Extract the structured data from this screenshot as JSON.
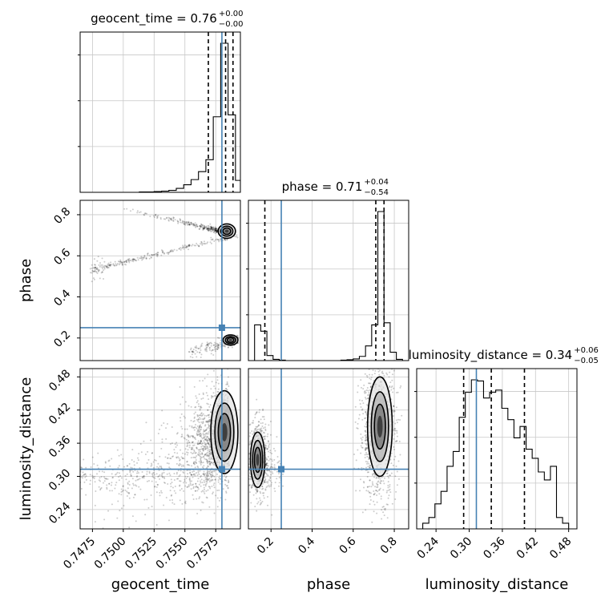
{
  "chart_data": {
    "type": "corner",
    "parameters": [
      "geocent_time",
      "phase",
      "luminosity_distance"
    ],
    "titles": {
      "geocent_time": {
        "name": "geocent_time",
        "median": "0.76",
        "plus": "+0.00",
        "minus": "−0.00"
      },
      "phase": {
        "name": "phase",
        "median": "0.71",
        "plus": "+0.04",
        "minus": "−0.54"
      },
      "luminosity_distance": {
        "name": "luminosity_distance",
        "median": "0.34",
        "plus": "+0.06",
        "minus": "−0.05"
      }
    },
    "axis_labels": {
      "x": [
        "geocent_time",
        "phase",
        "luminosity_distance"
      ],
      "y": [
        "phase",
        "luminosity_distance"
      ]
    },
    "ranges": {
      "geocent_time": [
        0.7465,
        0.7595
      ],
      "phase": [
        0.09,
        0.87
      ],
      "luminosity_distance": [
        0.205,
        0.495
      ]
    },
    "ticks": {
      "geocent_time": [
        "0.7475",
        "0.7500",
        "0.7525",
        "0.7550",
        "0.7575"
      ],
      "phase": [
        "0.2",
        "0.4",
        "0.6",
        "0.8"
      ],
      "luminosity_distance": [
        "0.24",
        "0.30",
        "0.36",
        "0.42",
        "0.48"
      ]
    },
    "truths": {
      "geocent_time": 0.758,
      "phase": 0.25,
      "luminosity_distance": 0.313
    },
    "quantiles": {
      "geocent_time": [
        0.7569,
        0.7583,
        0.7589
      ],
      "phase": [
        0.17,
        0.71,
        0.75
      ],
      "luminosity_distance": [
        0.29,
        0.34,
        0.4
      ]
    },
    "histograms": {
      "geocent_time": {
        "edges": [
          0.7465,
          0.7471,
          0.7477,
          0.7483,
          0.7489,
          0.7495,
          0.7501,
          0.7507,
          0.7513,
          0.7519,
          0.7525,
          0.7531,
          0.7537,
          0.7543,
          0.7549,
          0.7555,
          0.7561,
          0.7567,
          0.7573,
          0.7579,
          0.7585,
          0.7591,
          0.7595
        ],
        "counts": [
          0,
          0,
          0,
          0,
          0,
          0,
          0,
          0,
          1,
          1,
          2,
          3,
          5,
          10,
          19,
          32,
          52,
          82,
          190,
          375,
          195,
          30
        ]
      },
      "phase": {
        "edges": [
          0.09,
          0.12,
          0.15,
          0.18,
          0.21,
          0.24,
          0.27,
          0.3,
          0.33,
          0.36,
          0.39,
          0.42,
          0.45,
          0.48,
          0.51,
          0.54,
          0.57,
          0.6,
          0.63,
          0.66,
          0.69,
          0.72,
          0.75,
          0.78,
          0.81,
          0.84,
          0.87
        ],
        "counts": [
          0,
          85,
          70,
          12,
          3,
          1,
          0,
          0,
          0,
          0,
          0,
          0,
          0,
          0,
          0,
          1,
          2,
          4,
          10,
          35,
          85,
          355,
          90,
          20,
          3,
          0
        ]
      },
      "luminosity_distance": {
        "edges": [
          0.205,
          0.216,
          0.227,
          0.238,
          0.249,
          0.26,
          0.271,
          0.282,
          0.293,
          0.304,
          0.315,
          0.326,
          0.337,
          0.348,
          0.359,
          0.37,
          0.381,
          0.392,
          0.403,
          0.414,
          0.425,
          0.436,
          0.447,
          0.458,
          0.469,
          0.48,
          0.495
        ],
        "counts": [
          0,
          5,
          10,
          22,
          33,
          55,
          68,
          98,
          120,
          131,
          130,
          115,
          120,
          122,
          106,
          96,
          80,
          90,
          70,
          62,
          50,
          43,
          55,
          10,
          5,
          0
        ]
      }
    },
    "colors": {
      "truth": "#4682b4",
      "contour": "#000000",
      "grid": "#c8c8c8"
    }
  }
}
